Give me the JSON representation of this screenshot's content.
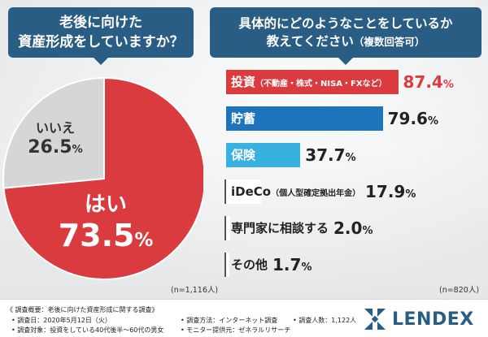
{
  "questions": {
    "q1_line1": "老後に向けた",
    "q1_line2": "資産形成をしていますか？",
    "q2_line1": "具体的にどのようなことをしているか",
    "q2_line2_main": "教えてください",
    "q2_line2_sub": "（複数回答可）"
  },
  "colors": {
    "navy": "#2a5d84",
    "red": "#d93b3f",
    "grey": "#d6d6d6",
    "blue": "#1e74bb",
    "lightblue": "#37b1e0",
    "white": "#ffffff"
  },
  "chart_data": [
    {
      "type": "pie",
      "slices": [
        {
          "label": "はい",
          "value": 73.5,
          "color": "#d93b3f"
        },
        {
          "label": "いいえ",
          "value": 26.5,
          "color": "#d6d6d6"
        }
      ],
      "unit": "%",
      "n": "(n=1,116人)"
    },
    {
      "type": "bar",
      "orientation": "horizontal",
      "categories": [
        {
          "label": "投資",
          "sub": "（不動産・株式・NISA・FXなど）"
        },
        {
          "label": "貯蓄",
          "sub": ""
        },
        {
          "label": "保険",
          "sub": ""
        },
        {
          "label": "iDeCo",
          "sub": "（個人型確定拠出年金）"
        },
        {
          "label": "専門家に相談する",
          "sub": ""
        },
        {
          "label": "その他",
          "sub": ""
        }
      ],
      "values": [
        87.4,
        79.6,
        37.7,
        17.9,
        2.0,
        1.7
      ],
      "display": [
        "87.4",
        "79.6",
        "37.7",
        "17.9",
        "2.0",
        "1.7"
      ],
      "bar_colors": [
        "#d93b3f",
        "#1e74bb",
        "#37b1e0",
        "#ffffff",
        "#ffffff",
        "#ffffff"
      ],
      "unit": "%",
      "xlim": [
        0,
        100
      ],
      "n": "(n=820人)"
    }
  ],
  "footer": {
    "title": "《 調査概要：老後に向けた資産形成に関する調査》",
    "date": "• 調査日：2020年5月12日（火）",
    "target": "• 調査対象：投資をしている40代後半〜60代の男女",
    "method": "• 調査方法：インターネット調査",
    "provider": "• モニター提供元：ゼネラルリサーチ",
    "count": "• 調査人数：1,122人"
  },
  "logo": {
    "text": "LENDEX",
    "icon": "lendex-logo-icon"
  }
}
